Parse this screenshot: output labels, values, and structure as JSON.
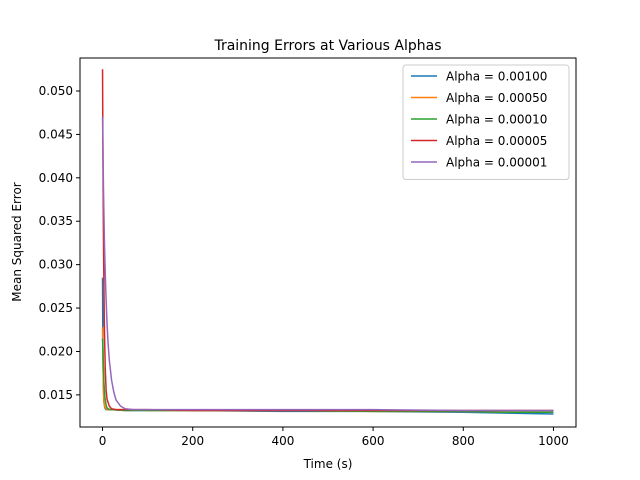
{
  "chart_data": {
    "type": "line",
    "title": "Training Errors at Various Alphas",
    "xlabel": "Time (s)",
    "ylabel": "Mean Squared Error",
    "xlim": [
      -50,
      1050
    ],
    "ylim": [
      0.0113,
      0.0538
    ],
    "xticks": [
      0,
      200,
      400,
      600,
      800,
      1000
    ],
    "yticks": [
      0.015,
      0.02,
      0.025,
      0.03,
      0.035,
      0.04,
      0.045,
      0.05
    ],
    "ytick_labels": [
      "0.015",
      "0.020",
      "0.025",
      "0.030",
      "0.035",
      "0.040",
      "0.045",
      "0.050"
    ],
    "grid": false,
    "legend_position": "top-right",
    "series": [
      {
        "name": "Alpha = 0.00100",
        "color": "#1f77b4",
        "x": [
          0,
          0.5,
          1,
          2,
          3,
          5,
          8,
          10,
          20,
          50,
          100,
          200,
          400,
          600,
          800,
          900,
          1000
        ],
        "y": [
          0.0285,
          0.0228,
          0.0192,
          0.0158,
          0.0142,
          0.0135,
          0.0133,
          0.0133,
          0.0133,
          0.0132,
          0.0132,
          0.0132,
          0.0131,
          0.0131,
          0.013,
          0.0129,
          0.0128
        ]
      },
      {
        "name": "Alpha = 0.00050",
        "color": "#ff7f0e",
        "x": [
          0,
          0.5,
          1,
          2,
          3,
          5,
          8,
          10,
          20,
          50,
          100,
          200,
          400,
          600,
          800,
          900,
          1000
        ],
        "y": [
          0.0228,
          0.0205,
          0.0184,
          0.0156,
          0.0143,
          0.0136,
          0.0134,
          0.0133,
          0.0133,
          0.0133,
          0.0132,
          0.0132,
          0.0132,
          0.0131,
          0.0131,
          0.013,
          0.013
        ]
      },
      {
        "name": "Alpha = 0.00010",
        "color": "#2ca02c",
        "x": [
          0,
          1,
          2,
          3,
          5,
          8,
          10,
          15,
          20,
          50,
          100,
          200,
          400,
          600,
          800,
          900,
          1000
        ],
        "y": [
          0.0215,
          0.02,
          0.018,
          0.0165,
          0.0148,
          0.0138,
          0.0135,
          0.0133,
          0.0133,
          0.0132,
          0.0132,
          0.0132,
          0.0132,
          0.0131,
          0.0131,
          0.013,
          0.013
        ]
      },
      {
        "name": "Alpha = 0.00005",
        "color": "#d62728",
        "x": [
          0,
          0.5,
          1,
          2,
          4,
          6,
          8,
          10,
          15,
          20,
          30,
          50,
          100,
          200,
          400,
          600,
          800,
          1000
        ],
        "y": [
          0.0525,
          0.047,
          0.041,
          0.033,
          0.023,
          0.018,
          0.0155,
          0.0145,
          0.0137,
          0.0134,
          0.0133,
          0.0133,
          0.0133,
          0.0132,
          0.0132,
          0.0132,
          0.0132,
          0.0132
        ]
      },
      {
        "name": "Alpha = 0.00001",
        "color": "#9467bd",
        "x": [
          0,
          1,
          2,
          4,
          6,
          8,
          10,
          12,
          15,
          20,
          25,
          30,
          40,
          50,
          70,
          100,
          200,
          400,
          600,
          800,
          1000
        ],
        "y": [
          0.047,
          0.043,
          0.039,
          0.033,
          0.029,
          0.0258,
          0.0232,
          0.0212,
          0.019,
          0.0167,
          0.0153,
          0.0144,
          0.0137,
          0.0134,
          0.0133,
          0.0133,
          0.0133,
          0.0133,
          0.0133,
          0.0132,
          0.0132
        ]
      }
    ]
  }
}
